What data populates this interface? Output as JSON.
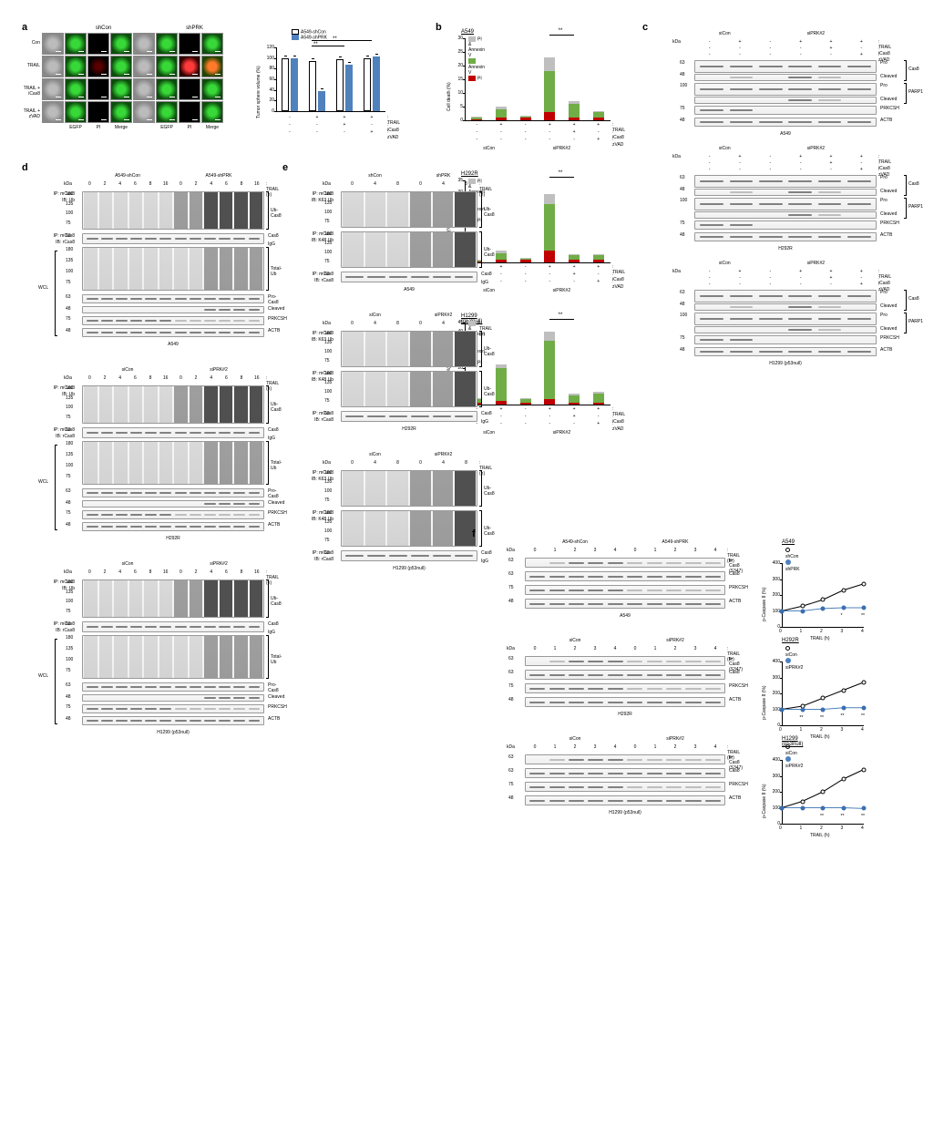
{
  "figure": {
    "panels": {
      "a": {
        "label": "a",
        "columns": {
          "shCon": "shCon",
          "shPRK": "shPRK"
        },
        "channels": [
          "EGFP",
          "PI",
          "Merge"
        ],
        "rows": [
          "Con",
          "TRAIL",
          "TRAIL + iCas8",
          "TRAIL + zVAD"
        ],
        "barchart": {
          "title": "Tumor sphere volume (%)",
          "legend": [
            {
              "label": "A549-shCon",
              "color": "#ffffff",
              "stroke": "#000"
            },
            {
              "label": "A549-shPRK",
              "color": "#4f81bd",
              "stroke": "#4f81bd"
            }
          ],
          "xlabels_treat": [
            "TRAIL",
            "iCas8",
            "zVAD"
          ],
          "groups": [
            {
              "shCon": 100,
              "shPRK": 100,
              "trail": "-",
              "icas8": "-",
              "zvad": "-"
            },
            {
              "shCon": 95,
              "shPRK": 38,
              "trail": "+",
              "icas8": "-",
              "zvad": "-"
            },
            {
              "shCon": 98,
              "shPRK": 88,
              "trail": "+",
              "icas8": "+",
              "zvad": "-"
            },
            {
              "shCon": 100,
              "shPRK": 103,
              "trail": "+",
              "icas8": "-",
              "zvad": "+"
            }
          ],
          "ylim": [
            0,
            120
          ],
          "yticks": [
            0,
            20,
            40,
            60,
            80,
            100,
            120
          ],
          "sig": [
            {
              "groups": [
                1,
                2
              ],
              "label": "**"
            },
            {
              "groups": [
                1,
                3
              ],
              "label": "**"
            }
          ]
        }
      },
      "b": {
        "label": "b",
        "cell_lines": [
          "A549",
          "H292R",
          "H1299 (p53null)"
        ],
        "legend": [
          {
            "label": "PI & Annexin V",
            "color": "#bfbfbf"
          },
          {
            "label": "Annexin V",
            "color": "#70ad47"
          },
          {
            "label": "PI",
            "color": "#c00000"
          }
        ],
        "xlabels_treat": [
          "TRAIL",
          "iCas8",
          "zVAD"
        ],
        "x_groups": [
          "siCon",
          "siPRK#2"
        ],
        "ylab": "Cell death (%)",
        "data": {
          "A549": {
            "ylim": [
              0,
              30
            ],
            "yticks": [
              0,
              5,
              10,
              15,
              20,
              25,
              30
            ],
            "bars": [
              {
                "PI": 0.5,
                "Annexin": 0.5,
                "PIA": 0.2
              },
              {
                "PI": 1,
                "Annexin": 3,
                "PIA": 1
              },
              {
                "PI": 1,
                "Annexin": 0.5,
                "PIA": 0.3
              },
              {
                "PI": 3,
                "Annexin": 15,
                "PIA": 5
              },
              {
                "PI": 1,
                "Annexin": 5,
                "PIA": 1
              },
              {
                "PI": 1,
                "Annexin": 2,
                "PIA": 0.5
              }
            ],
            "sig": "**"
          },
          "H292R": {
            "ylim": [
              0,
              35
            ],
            "yticks": [
              0,
              5,
              10,
              15,
              20,
              25,
              30,
              35
            ],
            "bars": [
              {
                "PI": 0.5,
                "Annexin": 0.5,
                "PIA": 0.3
              },
              {
                "PI": 1,
                "Annexin": 3,
                "PIA": 1
              },
              {
                "PI": 1,
                "Annexin": 0.5,
                "PIA": 0.3
              },
              {
                "PI": 5,
                "Annexin": 20,
                "PIA": 4
              },
              {
                "PI": 1,
                "Annexin": 2,
                "PIA": 0.5
              },
              {
                "PI": 1,
                "Annexin": 2,
                "PIA": 0.5
              }
            ],
            "sig": "**"
          },
          "H1299 (p53null)": {
            "ylim": [
              0,
              45
            ],
            "yticks": [
              0,
              5,
              10,
              15,
              20,
              25,
              30,
              35,
              40,
              45
            ],
            "bars": [
              {
                "PI": 1,
                "Annexin": 2,
                "PIA": 0.5
              },
              {
                "PI": 2,
                "Annexin": 18,
                "PIA": 2
              },
              {
                "PI": 1,
                "Annexin": 2,
                "PIA": 0.5
              },
              {
                "PI": 3,
                "Annexin": 32,
                "PIA": 5
              },
              {
                "PI": 1,
                "Annexin": 4,
                "PIA": 1
              },
              {
                "PI": 1,
                "Annexin": 5,
                "PIA": 1
              }
            ],
            "sig": "**"
          }
        }
      },
      "c": {
        "label": "c",
        "cell_lines": [
          "A549",
          "H292R",
          "H1299 (p53null)"
        ],
        "conditions": {
          "groups": [
            "siCon",
            "siPRK#2"
          ],
          "treat": [
            "TRAIL",
            "iCas8",
            "zVAD"
          ]
        },
        "lanes_trail": [
          "-",
          "+",
          "-",
          "+",
          "+",
          "+"
        ],
        "lanes_icas8": [
          "-",
          "-",
          "-",
          "-",
          "+",
          "-"
        ],
        "lanes_zvad": [
          "-",
          "-",
          "-",
          "-",
          "-",
          "+"
        ],
        "kDa": [
          63,
          48,
          100,
          75,
          48
        ],
        "antibodies": [
          "Cas8",
          "PARP1",
          "PRKCSH",
          "ACTB"
        ],
        "cas8_rows": [
          "Pro",
          "Cleaved"
        ],
        "parp1_rows": [
          "Pro",
          "Cleaved"
        ]
      },
      "d": {
        "label": "d",
        "cell_lines": [
          "A549",
          "H292R",
          "H1299 (p53null)"
        ],
        "conditions": [
          {
            "line": "A549",
            "groups": [
              "A549-shCon",
              "A549-shPRK"
            ],
            "times": [
              0,
              2,
              4,
              6,
              8,
              16
            ]
          },
          {
            "line": "H292R",
            "groups": [
              "siCon",
              "siPRK#2"
            ],
            "times": [
              0,
              2,
              4,
              6,
              8,
              16
            ]
          },
          {
            "line": "H1299 (p53null)",
            "groups": [
              "siCon",
              "siPRK#2"
            ],
            "times": [
              0,
              2,
              4,
              6,
              8,
              16
            ]
          }
        ],
        "trail_label": ": TRAIL (h)",
        "kDa_ub": [
          180,
          135,
          100,
          75
        ],
        "kDa_totalub": [
          180,
          135,
          100,
          75,
          63,
          48
        ],
        "ip_labels": {
          "ip1": "IP: mCas8",
          "ib1": "IB: Ub",
          "ip2": "IP: mCas8",
          "ib2": "IB: rCas8",
          "wcl": "WCL"
        },
        "targets": [
          "Ub-Cas8",
          "Cas8",
          "IgG",
          "Total-Ub",
          "Pro-Cas8",
          "Cleaved",
          "PRKCSH",
          "ACTB"
        ]
      },
      "e": {
        "label": "e",
        "cell_lines": [
          "A549",
          "H292R",
          "H1299 (p53null)"
        ],
        "conditions": [
          {
            "line": "A549",
            "groups": [
              "shCon",
              "shPRK"
            ],
            "times": [
              0,
              4,
              8
            ]
          },
          {
            "line": "H292R",
            "groups": [
              "siCon",
              "siPRK#2"
            ],
            "times": [
              0,
              4,
              8
            ]
          },
          {
            "line": "H1299 (p53null)",
            "groups": [
              "siCon",
              "siPRK#2"
            ],
            "times": [
              0,
              4,
              8
            ]
          }
        ],
        "trail_label": ": TRAIL (h)",
        "kDa_ub": [
          180,
          135,
          100,
          75
        ],
        "ip_labels": {
          "k63": "IP: mCas8\nIB: K63 Ub",
          "k48": "IP: mCas8\nIB: K48 Ub",
          "cas8": "IP: mCas8\nIB: rCas8"
        },
        "targets": [
          "Ub-Cas8",
          "Cas8",
          "IgG"
        ]
      },
      "f": {
        "label": "f",
        "cell_lines": [
          "A549",
          "H292R",
          "H1299 (p53null)"
        ],
        "conditions": [
          {
            "line": "A549",
            "groups": [
              "A549-shCon",
              "A549-shPRK"
            ],
            "times": [
              0,
              1,
              2,
              3,
              4
            ]
          },
          {
            "line": "H292R",
            "groups": [
              "siCon",
              "siPRK#2"
            ],
            "times": [
              0,
              1,
              2,
              3,
              4
            ]
          },
          {
            "line": "H1299 (p53null)",
            "groups": [
              "siCon",
              "siPRK#2"
            ],
            "times": [
              0,
              1,
              2,
              3,
              4
            ]
          }
        ],
        "trail_label": ": TRAIL (hr)",
        "kDa": [
          63,
          63,
          75,
          48
        ],
        "antibodies": [
          "p-Cas8 (S347)",
          "Cas8",
          "PRKCSH",
          "ACTB"
        ],
        "line_charts": {
          "ylab": "p-Caspase 8 (%)",
          "xlab": "TRAIL (h)",
          "xticks": [
            0,
            1,
            2,
            3,
            4
          ],
          "ylim": [
            0,
            400
          ],
          "yticks": [
            0,
            100,
            200,
            300,
            400
          ],
          "legends": {
            "A549": [
              {
                "label": "shCon",
                "fill": false
              },
              {
                "label": "shPRK",
                "fill": true
              }
            ],
            "H292R": [
              {
                "label": "siCon",
                "fill": false
              },
              {
                "label": "siPRK#2",
                "fill": true
              }
            ],
            "H1299 (p53null)": [
              {
                "label": "siCon",
                "fill": false
              },
              {
                "label": "siPRK#2",
                "fill": true
              }
            ]
          },
          "data": {
            "A549": {
              "con": [
                100,
                130,
                170,
                230,
                270
              ],
              "prk": [
                100,
                100,
                115,
                120,
                120
              ],
              "sig": [
                "",
                "",
                "",
                "*",
                "**"
              ]
            },
            "H292R": {
              "con": [
                100,
                120,
                170,
                220,
                270
              ],
              "prk": [
                100,
                100,
                100,
                110,
                110
              ],
              "sig": [
                "",
                "**",
                "**",
                "**",
                "**"
              ]
            },
            "H1299 (p53null)": {
              "con": [
                100,
                140,
                200,
                280,
                340
              ],
              "prk": [
                100,
                100,
                100,
                100,
                95
              ],
              "sig": [
                "",
                "",
                "**",
                "**",
                "**"
              ]
            }
          }
        }
      }
    },
    "colors": {
      "shCon_bar": "#ffffff",
      "shPRK_bar": "#4f81bd",
      "PIA": "#bfbfbf",
      "Annexin": "#70ad47",
      "PI": "#c00000",
      "line_con": "#000000",
      "line_prk": "#4f81bd"
    }
  }
}
